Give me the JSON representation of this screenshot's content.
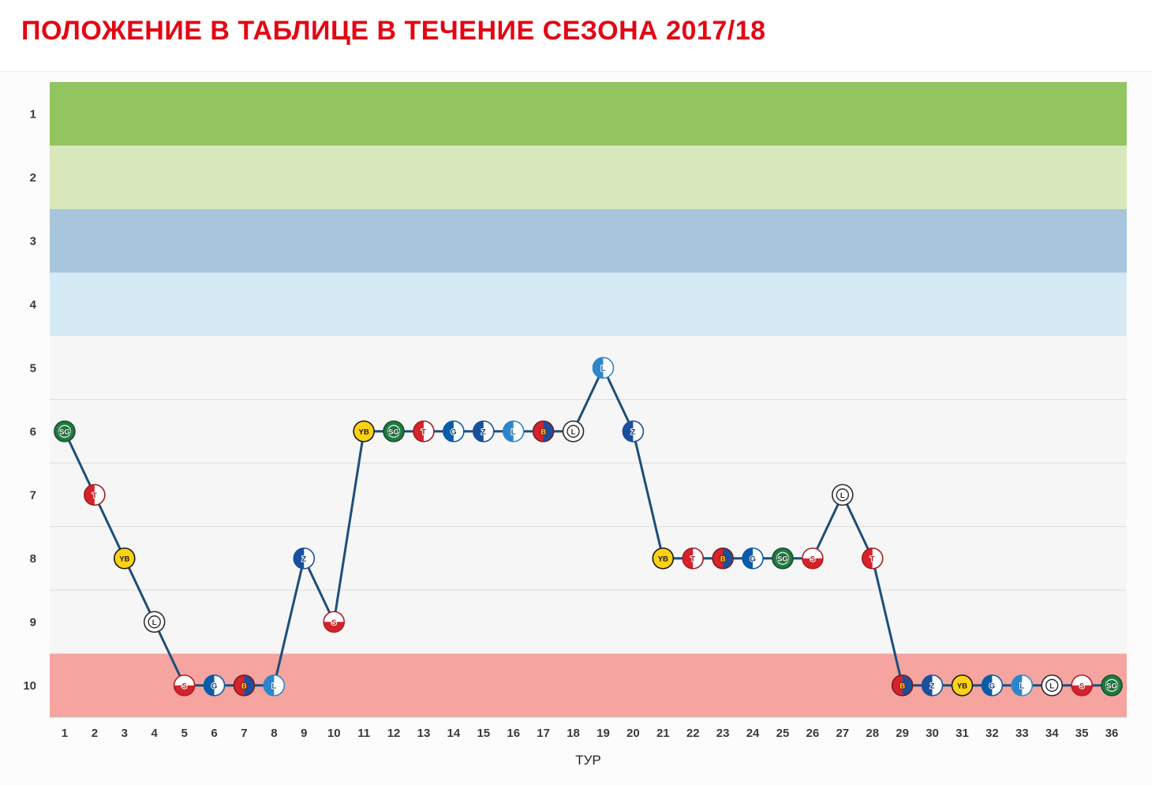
{
  "title": "ПОЛОЖЕНИЕ В ТАБЛИЦЕ В ТЕЧЕНИЕ СЕЗОНА 2017/18",
  "title_color": "#e30613",
  "chart_data": {
    "type": "line",
    "title": "ПОЛОЖЕНИЕ В ТАБЛИЦЕ В ТЕЧЕНИЕ СЕЗОНА 2017/18",
    "xlabel": "ТУР",
    "ylabel": "",
    "x": [
      1,
      2,
      3,
      4,
      5,
      6,
      7,
      8,
      9,
      10,
      11,
      12,
      13,
      14,
      15,
      16,
      17,
      18,
      19,
      20,
      21,
      22,
      23,
      24,
      25,
      26,
      27,
      28,
      29,
      30,
      31,
      32,
      33,
      34,
      35,
      36
    ],
    "y": [
      6,
      7,
      8,
      9,
      10,
      10,
      10,
      10,
      8,
      9,
      6,
      6,
      6,
      6,
      6,
      6,
      6,
      6,
      5,
      6,
      8,
      8,
      8,
      8,
      8,
      8,
      7,
      8,
      10,
      10,
      10,
      10,
      10,
      10,
      10,
      10
    ],
    "y_ticks": [
      1,
      2,
      3,
      4,
      5,
      6,
      7,
      8,
      9,
      10
    ],
    "ylim": [
      1,
      10
    ],
    "y_inverted": true,
    "grid": true,
    "marker_opponents": [
      "st_gallen",
      "thun",
      "young_boys",
      "lugano",
      "sion",
      "grasshopper",
      "basel",
      "luzern",
      "zurich",
      "sion",
      "young_boys",
      "st_gallen",
      "thun",
      "grasshopper",
      "zurich",
      "luzern",
      "basel",
      "lugano",
      "luzern",
      "zurich",
      "young_boys",
      "thun",
      "basel",
      "grasshopper",
      "st_gallen",
      "sion",
      "lugano",
      "thun",
      "basel",
      "zurich",
      "young_boys",
      "grasshopper",
      "luzern",
      "lugano",
      "sion",
      "st_gallen"
    ],
    "bands": [
      {
        "position": 1,
        "color": "#92c45f"
      },
      {
        "position": 2,
        "color": "#d9e8ba"
      },
      {
        "position": 3,
        "color": "#a7c6dd"
      },
      {
        "position": 4,
        "color": "#d6eaf6"
      },
      {
        "position": 5,
        "color": "#f6f6f6"
      },
      {
        "position": 6,
        "color": "#f6f6f6"
      },
      {
        "position": 7,
        "color": "#f6f6f6"
      },
      {
        "position": 8,
        "color": "#f6f6f6"
      },
      {
        "position": 9,
        "color": "#f6f6f6"
      },
      {
        "position": 10,
        "color": "#f5a49f"
      }
    ],
    "colors": {
      "line": "#1d4e7b",
      "grid": "#dcdcdc",
      "baseline": "#c9c9c9",
      "axis_text": "#3a3a3a"
    },
    "clubs": {
      "st_gallen": {
        "label": "SG",
        "style": "solid",
        "c1": "#1f7a40",
        "c2": "#1f7a40",
        "border": "#14512a",
        "text_color": "#ffffff",
        "text_stroke": "#14512a",
        "ring": "#cfe8d5"
      },
      "thun": {
        "label": "T",
        "style": "splitV",
        "c1": "#d5232a",
        "c2": "#ffffff",
        "border": "#a31b20",
        "text_color": "#a31b20",
        "text_stroke": "#ffffff"
      },
      "young_boys": {
        "label": "YB",
        "style": "solid",
        "c1": "#fcd116",
        "c2": "#fcd116",
        "border": "#1a1a1a",
        "text_color": "#1a1a1a",
        "text_stroke": "#fcd116"
      },
      "lugano": {
        "label": "L",
        "style": "solid",
        "c1": "#ffffff",
        "c2": "#ffffff",
        "border": "#2b2b2b",
        "text_color": "#2b2b2b",
        "text_stroke": "#ffffff",
        "ring": "#2b2b2b"
      },
      "sion": {
        "label": "S",
        "style": "splitH",
        "c1": "#ffffff",
        "c2": "#d5232a",
        "border": "#b01e24",
        "text_color": "#b01e24",
        "text_stroke": "#ffffff"
      },
      "grasshopper": {
        "label": "G",
        "style": "splitV",
        "c1": "#0a5ca8",
        "c2": "#ffffff",
        "border": "#0a5ca8",
        "text_color": "#083a6b",
        "text_stroke": "#ffffff"
      },
      "basel": {
        "label": "B",
        "style": "splitV",
        "c1": "#d5232a",
        "c2": "#1a4f9c",
        "border": "#7d1b1f",
        "text_color": "#ffd700",
        "text_stroke": "#7d1b1f"
      },
      "luzern": {
        "label": "L",
        "style": "splitV",
        "c1": "#2e86c9",
        "c2": "#ffffff",
        "border": "#2e86c9",
        "text_color": "#1c5e93",
        "text_stroke": "#ffffff"
      },
      "zurich": {
        "label": "Z",
        "style": "splitV",
        "c1": "#1a4f9c",
        "c2": "#ffffff",
        "border": "#1a4f9c",
        "text_color": "#12366b",
        "text_stroke": "#ffffff"
      }
    }
  }
}
